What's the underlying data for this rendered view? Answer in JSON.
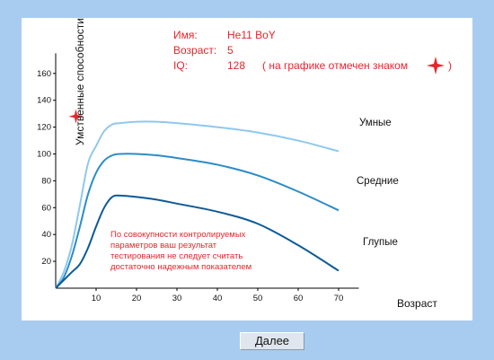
{
  "info": {
    "name_label": "Имя:",
    "name_value": "He11 BoY",
    "age_label": "Возраст:",
    "age_value": "5",
    "iq_label": "IQ:",
    "iq_value": "128",
    "iq_note_open": "( на графике отмечен знаком",
    "iq_note_close": ")"
  },
  "note": "По совокупности контролируемых параметров ваш результат тестирования не следует считать достаточно надежным показателем",
  "category_labels": {
    "smart": "Умные",
    "average": "Средние",
    "dumb": "Глупые"
  },
  "next_button": "Далее",
  "colors": {
    "background": "#a8ccf0",
    "panel": "#ffffff",
    "accent_red": "#e8242c",
    "series_smart": "#8ec8ee",
    "series_average": "#2c8cc8",
    "series_dumb": "#0c5a98"
  },
  "chart_data": {
    "type": "line",
    "xlabel": "Возраст",
    "ylabel": "Умственные способности",
    "xlim": [
      0,
      75
    ],
    "ylim": [
      0,
      175
    ],
    "xticks": [
      10,
      20,
      30,
      40,
      50,
      60,
      70
    ],
    "yticks": [
      20,
      40,
      60,
      80,
      100,
      120,
      140,
      160
    ],
    "series": [
      {
        "name": "Умные",
        "color": "#8ec8ee",
        "x": [
          0,
          2,
          4,
          6,
          8,
          10,
          12,
          14,
          16,
          20,
          25,
          30,
          40,
          50,
          60,
          70
        ],
        "y": [
          0,
          12,
          32,
          62,
          93,
          106,
          117,
          122,
          123,
          124,
          124,
          123,
          120,
          116,
          110,
          102
        ]
      },
      {
        "name": "Средние",
        "color": "#2c8cc8",
        "x": [
          0,
          2,
          4,
          6,
          8,
          10,
          12,
          14,
          16,
          20,
          25,
          30,
          40,
          50,
          60,
          70
        ],
        "y": [
          0,
          8,
          24,
          46,
          70,
          86,
          95,
          99,
          100,
          100,
          99,
          97,
          92,
          84,
          72,
          58
        ]
      },
      {
        "name": "Глупые",
        "color": "#0c5a98",
        "x": [
          0,
          2,
          4,
          6,
          8,
          10,
          12,
          14,
          16,
          20,
          25,
          30,
          40,
          50,
          60,
          70
        ],
        "y": [
          0,
          6,
          12,
          18,
          30,
          46,
          60,
          68,
          69,
          68,
          66,
          63,
          57,
          48,
          32,
          13
        ]
      }
    ],
    "marker": {
      "x": 5,
      "y": 128,
      "color": "#e8242c"
    }
  }
}
